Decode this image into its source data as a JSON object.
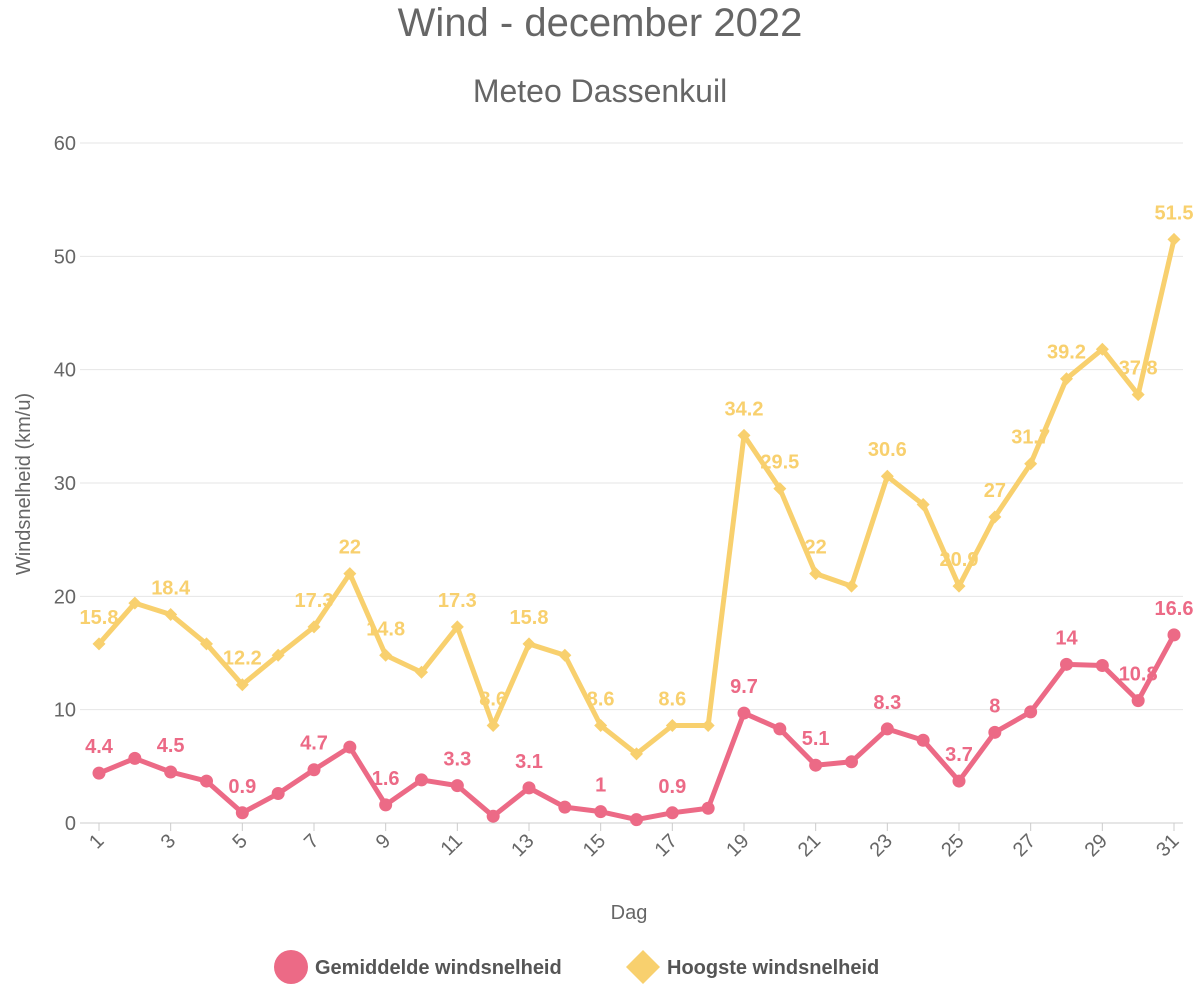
{
  "chart_data": {
    "type": "line",
    "title": "Wind - december 2022",
    "subtitle": "Meteo Dassenkuil",
    "xlabel": "Dag",
    "ylabel": "Windsnelheid (km/u)",
    "ylim": [
      0,
      60
    ],
    "yticks": [
      "0",
      "10",
      "20",
      "30",
      "40",
      "50",
      "60"
    ],
    "x": [
      1,
      2,
      3,
      4,
      5,
      6,
      7,
      8,
      9,
      10,
      11,
      12,
      13,
      14,
      15,
      16,
      17,
      18,
      19,
      20,
      21,
      22,
      23,
      24,
      25,
      26,
      27,
      28,
      29,
      30,
      31
    ],
    "xtick_labels": [
      "1",
      "3",
      "5",
      "7",
      "9",
      "11",
      "13",
      "15",
      "17",
      "19",
      "21",
      "23",
      "25",
      "27",
      "29",
      "31"
    ],
    "grid": true,
    "legend_position": "bottom",
    "series": [
      {
        "name": "Gemiddelde windsnelheid",
        "color": "#ec6a86",
        "marker": "circle",
        "values": [
          4.4,
          5.7,
          4.5,
          3.7,
          0.9,
          2.6,
          4.7,
          6.7,
          1.6,
          3.8,
          3.3,
          0.6,
          3.1,
          1.4,
          1,
          0.3,
          0.9,
          1.3,
          9.7,
          8.3,
          5.1,
          5.4,
          8.3,
          7.3,
          3.7,
          8,
          9.8,
          14,
          13.9,
          10.8,
          16.6
        ],
        "labels": [
          "4.4",
          "",
          "4.5",
          "",
          "0.9",
          "",
          "4.7",
          "",
          "1.6",
          "",
          "3.3",
          "",
          "3.1",
          "",
          "1",
          "",
          "0.9",
          "",
          "9.7",
          "",
          "5.1",
          "",
          "8.3",
          "",
          "3.7",
          "8",
          "",
          "14",
          "",
          "10.8",
          "16.6"
        ]
      },
      {
        "name": "Hoogste windsnelheid",
        "color": "#f8d06e",
        "marker": "diamond",
        "values": [
          15.8,
          19.4,
          18.4,
          15.8,
          12.2,
          14.8,
          17.3,
          22,
          14.8,
          13.3,
          17.3,
          8.6,
          15.8,
          14.8,
          8.6,
          6.1,
          8.6,
          8.6,
          34.2,
          29.5,
          22,
          20.9,
          30.6,
          28.1,
          20.9,
          27,
          31.7,
          39.2,
          41.8,
          37.8,
          51.5
        ],
        "labels": [
          "15.8",
          "",
          "18.4",
          "",
          "12.2",
          "",
          "17.3",
          "22",
          "14.8",
          "",
          "17.3",
          "8.6",
          "15.8",
          "",
          "8.6",
          "",
          "8.6",
          "",
          "34.2",
          "29.5",
          "22",
          "",
          "30.6",
          "",
          "20.9",
          "27",
          "31.7",
          "39.2",
          "",
          "37.8",
          "51.5"
        ]
      }
    ]
  }
}
